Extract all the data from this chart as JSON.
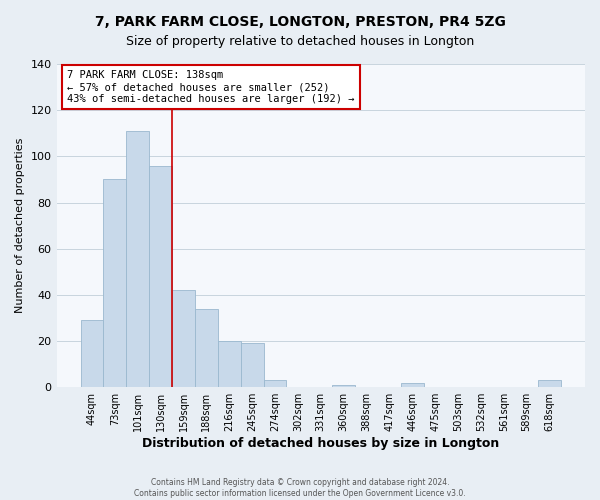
{
  "title": "7, PARK FARM CLOSE, LONGTON, PRESTON, PR4 5ZG",
  "subtitle": "Size of property relative to detached houses in Longton",
  "xlabel": "Distribution of detached houses by size in Longton",
  "ylabel": "Number of detached properties",
  "bar_labels": [
    "44sqm",
    "73sqm",
    "101sqm",
    "130sqm",
    "159sqm",
    "188sqm",
    "216sqm",
    "245sqm",
    "274sqm",
    "302sqm",
    "331sqm",
    "360sqm",
    "388sqm",
    "417sqm",
    "446sqm",
    "475sqm",
    "503sqm",
    "532sqm",
    "561sqm",
    "589sqm",
    "618sqm"
  ],
  "bar_values": [
    29,
    90,
    111,
    96,
    42,
    34,
    20,
    19,
    3,
    0,
    0,
    1,
    0,
    0,
    2,
    0,
    0,
    0,
    0,
    0,
    3
  ],
  "bar_color": "#c8d9ea",
  "bar_edge_color": "#9ab8cf",
  "ylim": [
    0,
    140
  ],
  "yticks": [
    0,
    20,
    40,
    60,
    80,
    100,
    120,
    140
  ],
  "vline_color": "#cc0000",
  "annotation_title": "7 PARK FARM CLOSE: 138sqm",
  "annotation_line1": "← 57% of detached houses are smaller (252)",
  "annotation_line2": "43% of semi-detached houses are larger (192) →",
  "annotation_box_color": "#ffffff",
  "annotation_border_color": "#cc0000",
  "footer1": "Contains HM Land Registry data © Crown copyright and database right 2024.",
  "footer2": "Contains public sector information licensed under the Open Government Licence v3.0.",
  "background_color": "#e8eef4",
  "plot_background": "#f5f8fc",
  "grid_color": "#c8d4de",
  "title_fontsize": 10,
  "subtitle_fontsize": 9
}
